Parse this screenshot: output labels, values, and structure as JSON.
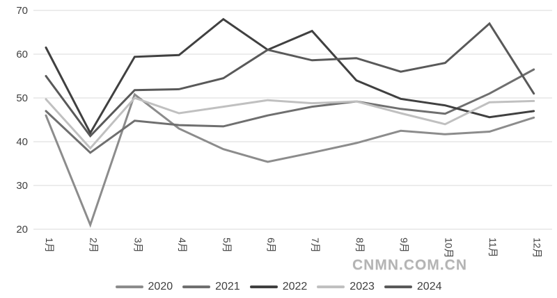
{
  "watermark": "CNMN.COM.CN",
  "chart_data": {
    "type": "line",
    "title": "",
    "xlabel": "",
    "ylabel": "",
    "categories": [
      "1月",
      "2月",
      "3月",
      "4月",
      "5月",
      "6月",
      "7月",
      "8月",
      "9月",
      "10月",
      "11月",
      "12月"
    ],
    "series": [
      {
        "name": "2020",
        "color": "#8c8c8c",
        "values": [
          46,
          21,
          50.8,
          43,
          38.3,
          35.4,
          37.5,
          39.7,
          42.5,
          41.7,
          42.3,
          45.5
        ]
      },
      {
        "name": "2021",
        "color": "#6f6f6f",
        "values": [
          47,
          37.5,
          44.8,
          43.8,
          43.5,
          46,
          48,
          49.2,
          47.5,
          46.4,
          51,
          56.5
        ]
      },
      {
        "name": "2022",
        "color": "#404040",
        "values": [
          61.5,
          42,
          59.4,
          59.8,
          68,
          61,
          65.3,
          54,
          49.8,
          48.3,
          45.6,
          47
        ]
      },
      {
        "name": "2023",
        "color": "#c0c0c0",
        "values": [
          49.7,
          38.5,
          50,
          46.5,
          48,
          49.5,
          48.8,
          49.2,
          46.5,
          44,
          49,
          49.3
        ]
      },
      {
        "name": "2024",
        "color": "#595959",
        "values": [
          55,
          41.3,
          51.8,
          52,
          54.5,
          61,
          58.6,
          59.1,
          56,
          58,
          67,
          51
        ]
      }
    ],
    "ylim": [
      20,
      70
    ],
    "ytick_step": 10,
    "yticks": [
      20,
      30,
      40,
      50,
      60,
      70
    ],
    "grid": "horizontal",
    "legend_position": "bottom"
  }
}
